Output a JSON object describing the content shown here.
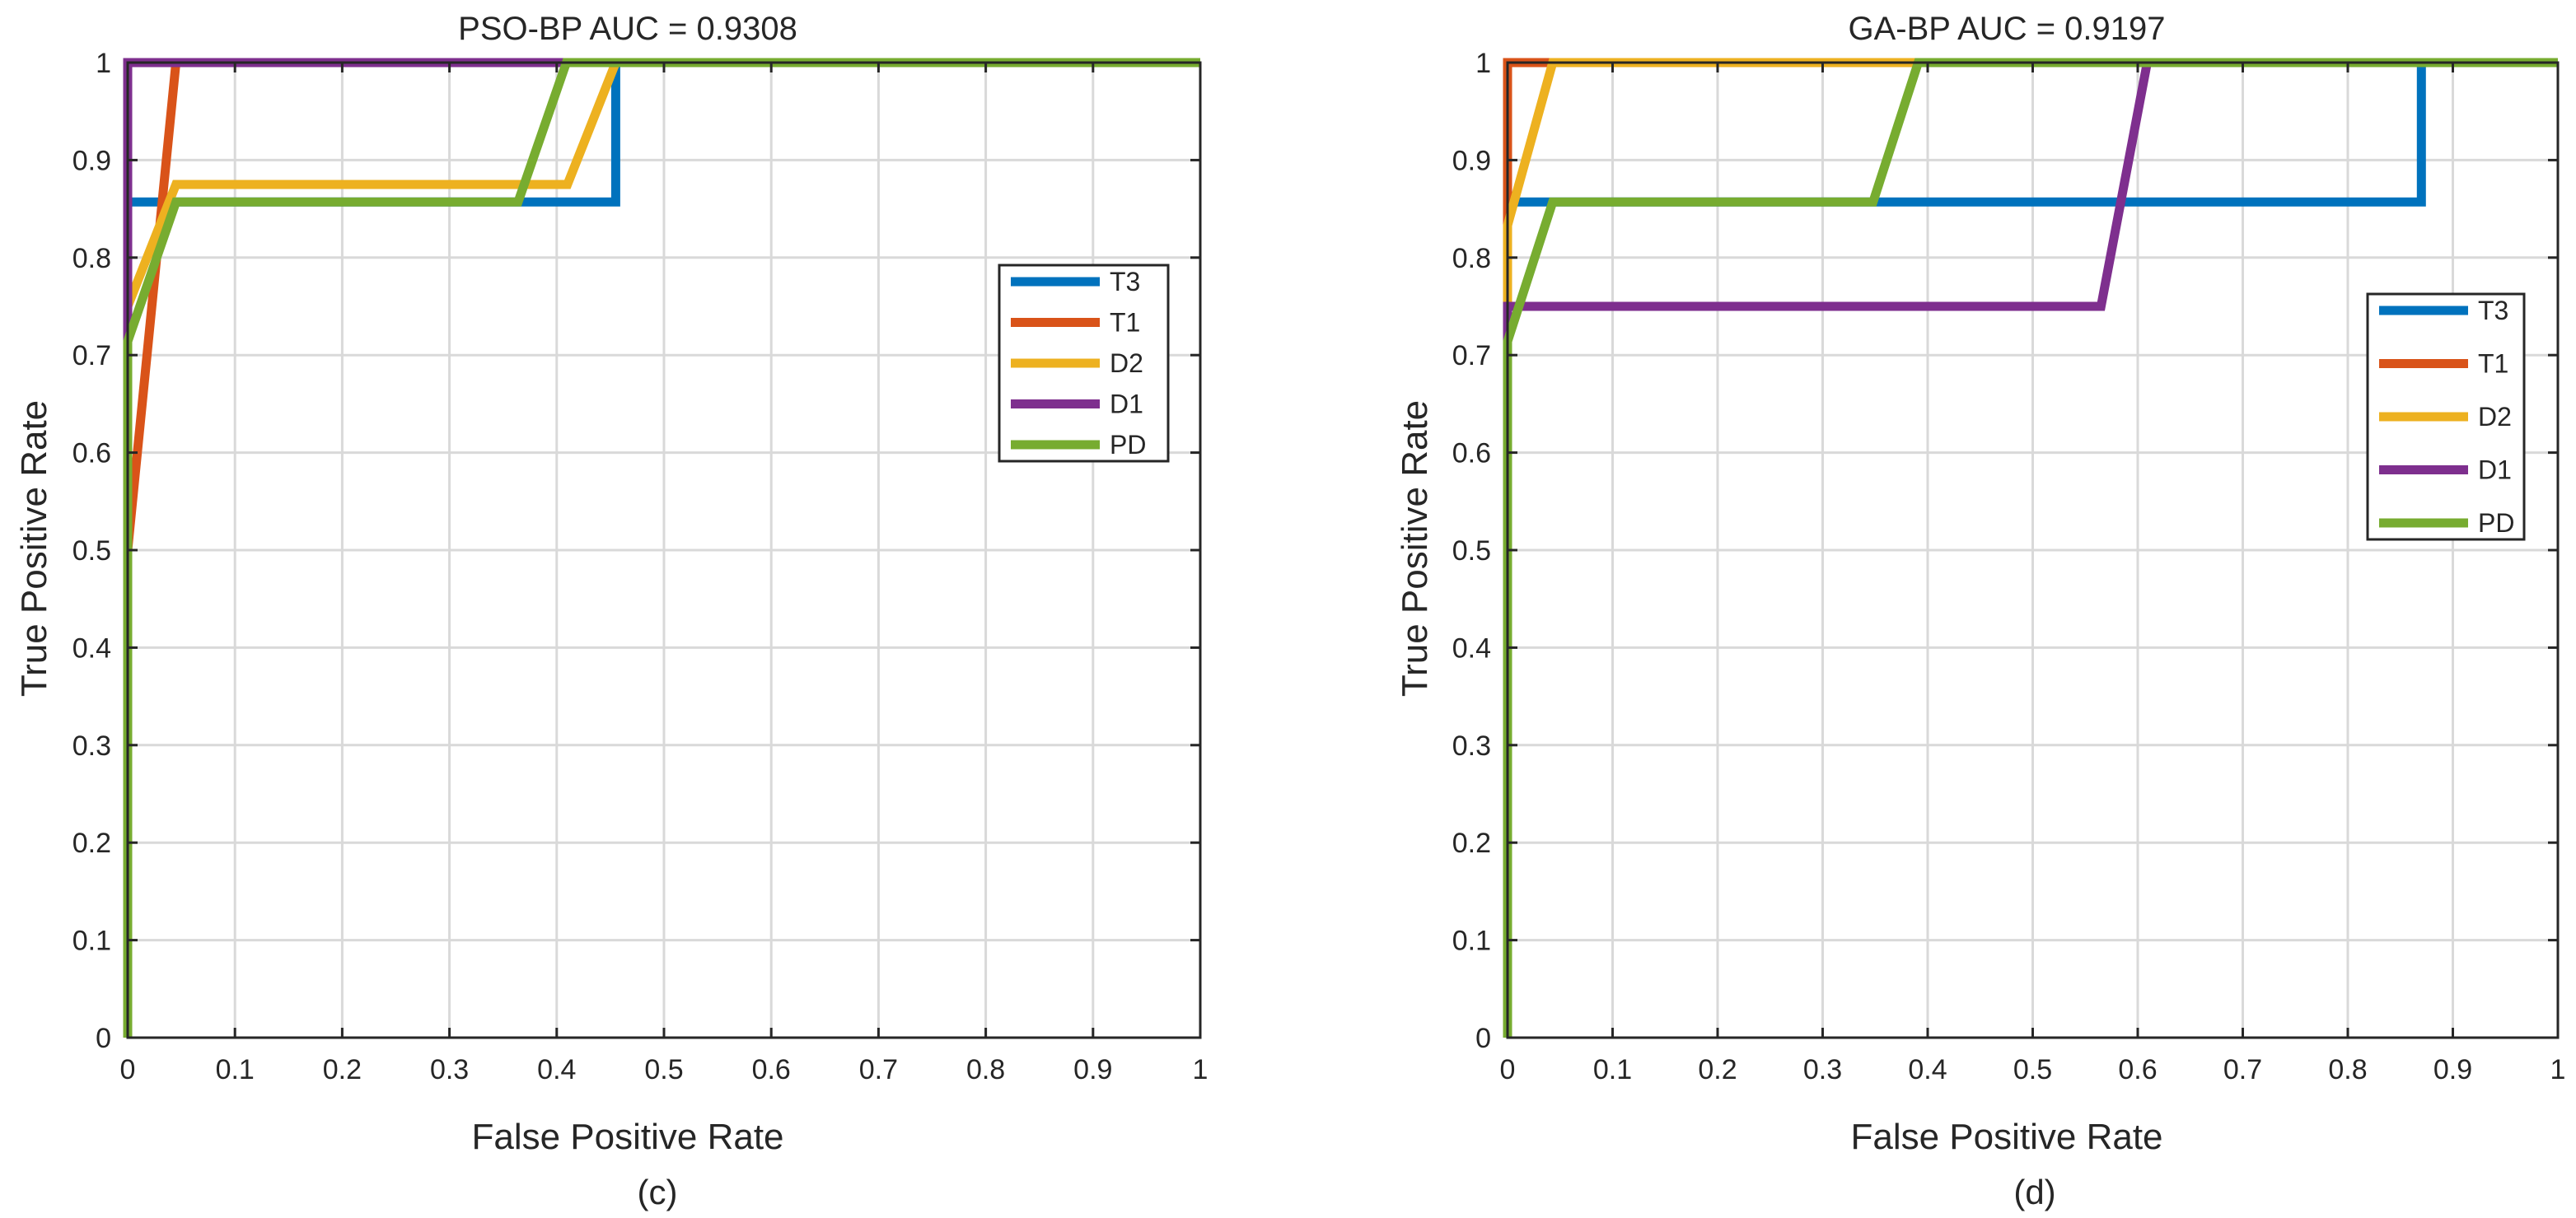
{
  "chart_data": [
    {
      "type": "line",
      "title": "PSO-BP AUC = 0.9308",
      "xlabel": "False Positive Rate",
      "ylabel": "True Positive Rate",
      "caption": "(c)",
      "xlim": [
        0,
        1
      ],
      "ylim": [
        0,
        1
      ],
      "xticks": [
        "0",
        "0.1",
        "0.2",
        "0.3",
        "0.4",
        "0.5",
        "0.6",
        "0.7",
        "0.8",
        "0.9",
        "1"
      ],
      "yticks": [
        "0",
        "0.1",
        "0.2",
        "0.3",
        "0.4",
        "0.5",
        "0.6",
        "0.7",
        "0.8",
        "0.9",
        "1"
      ],
      "grid": true,
      "legend_position": "right",
      "series": [
        {
          "name": "T3",
          "color": "#0072BD",
          "points": [
            [
              0,
              0
            ],
            [
              0,
              0.857
            ],
            [
              0.455,
              0.857
            ],
            [
              0.455,
              1
            ],
            [
              1,
              1
            ]
          ]
        },
        {
          "name": "T1",
          "color": "#D95319",
          "points": [
            [
              0,
              0
            ],
            [
              0,
              0.5
            ],
            [
              0.045,
              1
            ],
            [
              1,
              1
            ]
          ]
        },
        {
          "name": "D2",
          "color": "#EDB120",
          "points": [
            [
              0,
              0
            ],
            [
              0,
              0.75
            ],
            [
              0.045,
              0.875
            ],
            [
              0.41,
              0.875
            ],
            [
              0.455,
              1
            ],
            [
              1,
              1
            ]
          ]
        },
        {
          "name": "D1",
          "color": "#7E2F8E",
          "points": [
            [
              0,
              0
            ],
            [
              0,
              1
            ],
            [
              1,
              1
            ]
          ]
        },
        {
          "name": "PD",
          "color": "#77AC30",
          "points": [
            [
              0,
              0
            ],
            [
              0,
              0.714
            ],
            [
              0.045,
              0.857
            ],
            [
              0.364,
              0.857
            ],
            [
              0.409,
              1
            ],
            [
              1,
              1
            ]
          ]
        }
      ]
    },
    {
      "type": "line",
      "title": "GA-BP AUC = 0.9197",
      "xlabel": "False Positive Rate",
      "ylabel": "True Positive Rate",
      "caption": "(d)",
      "xlim": [
        0,
        1
      ],
      "ylim": [
        0,
        1
      ],
      "xticks": [
        "0",
        "0.1",
        "0.2",
        "0.3",
        "0.4",
        "0.5",
        "0.6",
        "0.7",
        "0.8",
        "0.9",
        "1"
      ],
      "yticks": [
        "0",
        "0.1",
        "0.2",
        "0.3",
        "0.4",
        "0.5",
        "0.6",
        "0.7",
        "0.8",
        "0.9",
        "1"
      ],
      "grid": true,
      "legend_position": "right",
      "series": [
        {
          "name": "T3",
          "color": "#0072BD",
          "points": [
            [
              0,
              0
            ],
            [
              0,
              0.857
            ],
            [
              0.87,
              0.857
            ],
            [
              0.87,
              1
            ],
            [
              1,
              1
            ]
          ]
        },
        {
          "name": "T1",
          "color": "#D95319",
          "points": [
            [
              0,
              0
            ],
            [
              0,
              1
            ],
            [
              1,
              1
            ]
          ]
        },
        {
          "name": "D2",
          "color": "#EDB120",
          "points": [
            [
              0,
              0
            ],
            [
              0,
              0.833
            ],
            [
              0.043,
              1
            ],
            [
              1,
              1
            ]
          ]
        },
        {
          "name": "D1",
          "color": "#7E2F8E",
          "points": [
            [
              0,
              0
            ],
            [
              0,
              0.75
            ],
            [
              0.565,
              0.75
            ],
            [
              0.609,
              1
            ],
            [
              1,
              1
            ]
          ]
        },
        {
          "name": "PD",
          "color": "#77AC30",
          "points": [
            [
              0,
              0
            ],
            [
              0,
              0.714
            ],
            [
              0.043,
              0.857
            ],
            [
              0.348,
              0.857
            ],
            [
              0.391,
              1
            ],
            [
              1,
              1
            ]
          ]
        }
      ]
    }
  ]
}
